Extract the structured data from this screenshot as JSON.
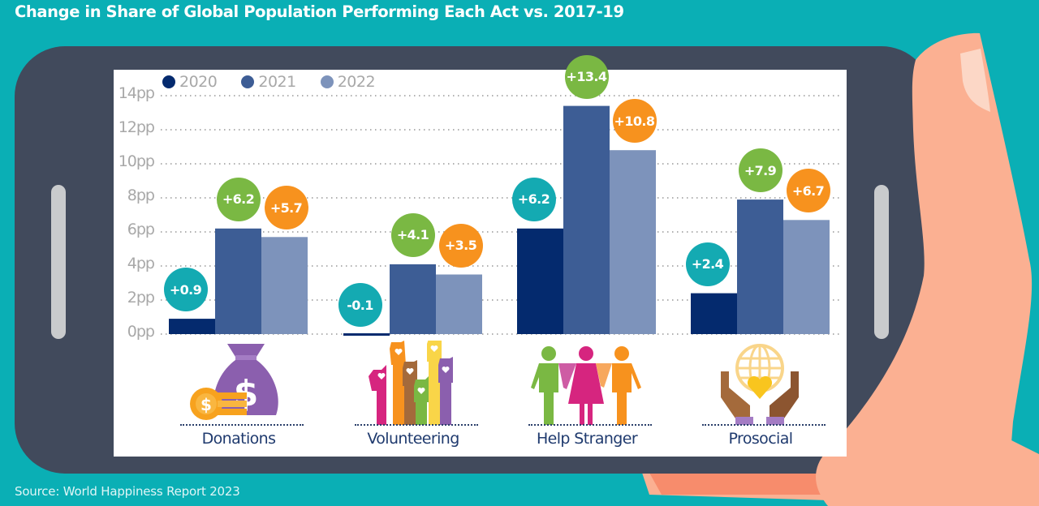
{
  "title": "Change in Share of Global Population Performing Each Act vs. 2017-19",
  "source": "Source: World Happiness Report 2023",
  "colors": {
    "background": "#0aafb5",
    "phone_body": "#414a5c",
    "phone_button": "#c9cbcd",
    "hand": "#fbb092",
    "hand_shadow": "#f78c6c",
    "nail": "#fcd7c6",
    "series_2020": "#042a6e",
    "series_2021": "#3d5d95",
    "series_2022": "#7d93bb",
    "bubble_2020": "#14aab2",
    "bubble_2021": "#7ab843",
    "bubble_2022": "#f7921e",
    "tick_text": "#a8a8a8",
    "category_text": "#1f3a6e"
  },
  "icons": {
    "donations": "money-bag-icon",
    "volunteering": "raised-hands-icon",
    "help_stranger": "people-icon",
    "prosocial": "hands-globe-heart-icon"
  },
  "chart_data": {
    "type": "bar",
    "title": "Change in Share of Global Population Performing Each Act vs. 2017-19",
    "xlabel": "",
    "ylabel": "",
    "categories": [
      "Donations",
      "Volunteering",
      "Help Stranger",
      "Prosocial"
    ],
    "series": [
      {
        "name": "2020",
        "values": [
          0.9,
          -0.1,
          6.2,
          2.4
        ],
        "labels": [
          "+0.9",
          "-0.1",
          "+6.2",
          "+2.4"
        ]
      },
      {
        "name": "2021",
        "values": [
          6.2,
          4.1,
          13.4,
          7.9
        ],
        "labels": [
          "+6.2",
          "+4.1",
          "+13.4",
          "+7.9"
        ]
      },
      {
        "name": "2022",
        "values": [
          5.7,
          3.5,
          10.8,
          6.7
        ],
        "labels": [
          "+5.7",
          "+3.5",
          "+10.8",
          "+6.7"
        ]
      }
    ],
    "ylim": [
      0,
      14
    ],
    "yticks": [
      0,
      2,
      4,
      6,
      8,
      10,
      12,
      14
    ],
    "ytick_labels": [
      "0pp",
      "2pp",
      "4pp",
      "6pp",
      "8pp",
      "10pp",
      "12pp",
      "14pp"
    ],
    "grid": "dotted horizontal",
    "legend": {
      "position": "top-left",
      "entries": [
        "2020",
        "2021",
        "2022"
      ]
    },
    "source": "Source: World Happiness Report 2023"
  }
}
